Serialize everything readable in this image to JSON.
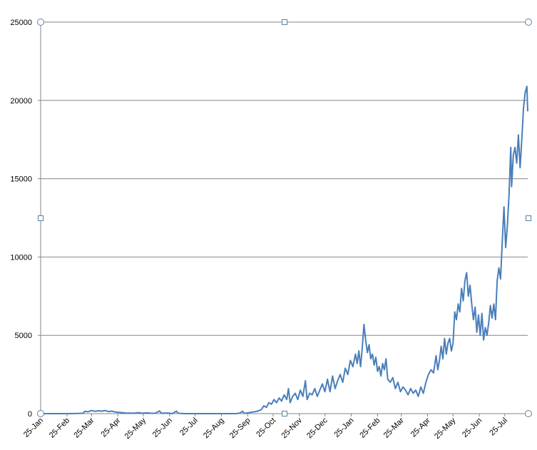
{
  "chart_data": {
    "type": "line",
    "x": [
      0,
      10,
      20,
      30,
      40,
      50,
      52,
      56,
      60,
      64,
      68,
      72,
      76,
      80,
      84,
      88,
      92,
      96,
      100,
      110,
      115,
      120,
      125,
      130,
      135,
      140,
      142,
      150,
      155,
      160,
      162,
      170,
      180,
      190,
      200,
      210,
      220,
      230,
      235,
      238,
      240,
      245,
      250,
      255,
      260,
      263,
      266,
      269,
      272,
      275,
      278,
      281,
      284,
      287,
      290,
      292,
      294,
      297,
      300,
      303,
      306,
      309,
      312,
      314,
      317,
      320,
      323,
      326,
      329,
      332,
      335,
      338,
      341,
      344,
      347,
      350,
      353,
      356,
      359,
      362,
      365,
      368,
      371,
      373,
      375,
      377,
      379,
      381,
      383,
      385,
      387,
      389,
      391,
      393,
      395,
      397,
      399,
      401,
      403,
      405,
      407,
      409,
      412,
      415,
      418,
      421,
      424,
      427,
      430,
      433,
      436,
      439,
      442,
      445,
      448,
      451,
      454,
      457,
      460,
      463,
      466,
      468,
      470,
      472,
      474,
      476,
      478,
      480,
      482,
      484,
      486,
      488,
      490,
      492,
      494,
      496,
      498,
      500,
      502,
      504,
      506,
      508,
      510,
      512,
      514,
      516,
      518,
      520,
      522,
      524,
      526,
      528,
      530,
      532,
      534,
      536,
      538,
      540,
      542,
      544,
      546,
      548,
      550,
      552,
      554,
      555,
      557,
      559,
      561,
      563,
      565,
      567,
      569,
      571,
      573,
      574
    ],
    "series": [
      {
        "color": "#4a7ebb",
        "values": [
          0,
          0,
          0,
          0,
          5,
          20,
          150,
          120,
          200,
          150,
          180,
          160,
          200,
          130,
          160,
          100,
          80,
          60,
          40,
          30,
          60,
          30,
          50,
          30,
          20,
          170,
          30,
          40,
          0,
          160,
          20,
          0,
          0,
          0,
          0,
          0,
          0,
          0,
          40,
          150,
          20,
          60,
          100,
          150,
          250,
          500,
          400,
          700,
          600,
          900,
          700,
          1000,
          800,
          1200,
          900,
          1600,
          700,
          1100,
          1300,
          900,
          1500,
          1100,
          2100,
          900,
          1300,
          1200,
          1600,
          1100,
          1500,
          1900,
          1400,
          2200,
          1400,
          2400,
          1600,
          2100,
          2500,
          2000,
          2900,
          2500,
          3400,
          3000,
          3800,
          3200,
          4000,
          3000,
          4200,
          5700,
          4700,
          3900,
          4400,
          3500,
          3800,
          3100,
          3600,
          2700,
          3000,
          2400,
          3200,
          2800,
          3500,
          2200,
          2000,
          2300,
          1600,
          2000,
          1400,
          1700,
          1500,
          1200,
          1600,
          1300,
          1500,
          1100,
          1700,
          1300,
          2000,
          2500,
          2800,
          2600,
          3700,
          2800,
          3400,
          4300,
          3500,
          4800,
          3800,
          4500,
          4800,
          4000,
          4500,
          6500,
          6000,
          7000,
          6500,
          8000,
          7200,
          8500,
          9000,
          7500,
          8200,
          7000,
          6000,
          6800,
          5200,
          6300,
          5000,
          6400,
          4700,
          5500,
          5000,
          5800,
          6900,
          6100,
          7000,
          6000,
          8500,
          9300,
          8600,
          11000,
          13200,
          10600,
          12000,
          14000,
          17000,
          14500,
          16500,
          17000,
          16000,
          17800,
          15700,
          17500,
          19500,
          20500,
          20900,
          19300
        ]
      }
    ],
    "xlim": [
      0,
      574
    ],
    "xticks": [
      {
        "value": 0,
        "label": "25-Jan"
      },
      {
        "value": 31,
        "label": "25-Feb"
      },
      {
        "value": 60,
        "label": "25-Mar"
      },
      {
        "value": 91,
        "label": "25-Apr"
      },
      {
        "value": 121,
        "label": "25-May"
      },
      {
        "value": 152,
        "label": "25-Jun"
      },
      {
        "value": 182,
        "label": "25-Jul"
      },
      {
        "value": 213,
        "label": "25-Aug"
      },
      {
        "value": 244,
        "label": "25-Sep"
      },
      {
        "value": 274,
        "label": "25-Oct"
      },
      {
        "value": 305,
        "label": "25-Nov"
      },
      {
        "value": 335,
        "label": "25-Dec"
      },
      {
        "value": 366,
        "label": "25-Jan"
      },
      {
        "value": 397,
        "label": "25-Feb"
      },
      {
        "value": 425,
        "label": "25-Mar"
      },
      {
        "value": 456,
        "label": "25-Apr"
      },
      {
        "value": 486,
        "label": "25-May"
      },
      {
        "value": 517,
        "label": "25-Jun"
      },
      {
        "value": 547,
        "label": "25-Jul"
      }
    ],
    "ylim": [
      0,
      25000
    ],
    "yticks": [
      0,
      5000,
      10000,
      15000,
      20000,
      25000
    ],
    "grid": true
  }
}
